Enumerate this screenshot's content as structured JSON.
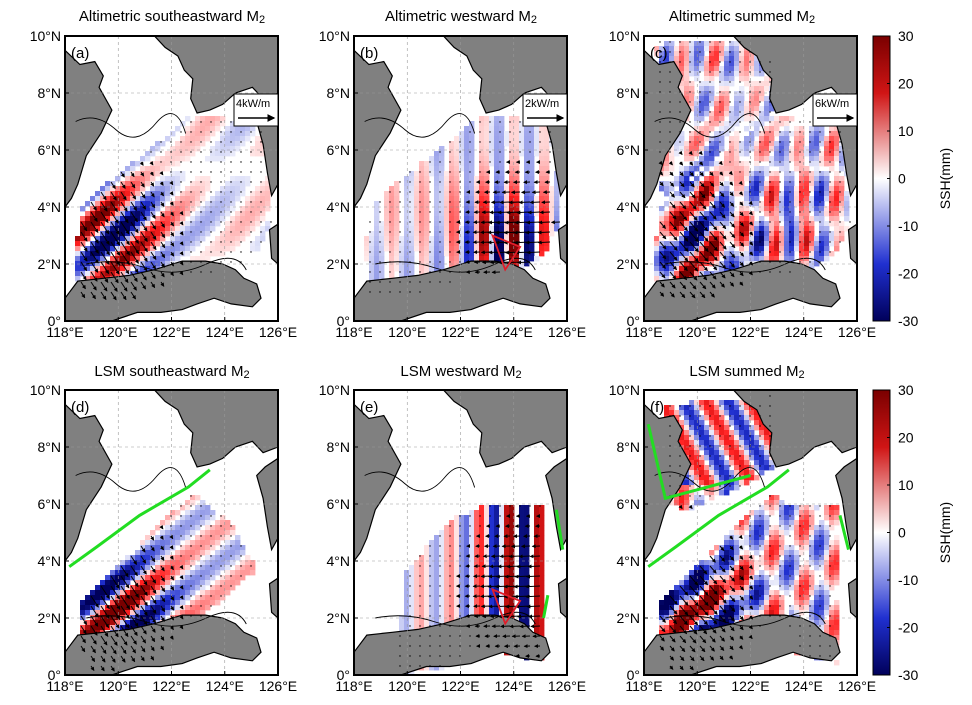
{
  "figure": {
    "panels": [
      {
        "id": "a",
        "letter": "(a)",
        "title_main": "Altimetric southeastward M",
        "title_sub": "2",
        "scale_label": "4kW/m",
        "mode": "se",
        "has_scale": true,
        "has_green": false,
        "has_red": false
      },
      {
        "id": "b",
        "letter": "(b)",
        "title_main": "Altimetric westward M",
        "title_sub": "2",
        "scale_label": "2kW/m",
        "mode": "w",
        "has_scale": true,
        "has_green": false,
        "has_red": true
      },
      {
        "id": "c",
        "letter": "(c)",
        "title_main": "Altimetric summed M",
        "title_sub": "2",
        "scale_label": "6kW/m",
        "mode": "sum",
        "has_scale": true,
        "has_green": false,
        "has_red": false
      },
      {
        "id": "d",
        "letter": "(d)",
        "title_main": "LSM southeastward M",
        "title_sub": "2",
        "scale_label": "",
        "mode": "lse",
        "has_scale": false,
        "has_green": true,
        "has_red": false
      },
      {
        "id": "e",
        "letter": "(e)",
        "title_main": "LSM westward M",
        "title_sub": "2",
        "scale_label": "",
        "mode": "lw",
        "has_scale": false,
        "has_green": true,
        "has_red": true
      },
      {
        "id": "f",
        "letter": "(f)",
        "title_main": "LSM summed M",
        "title_sub": "2",
        "scale_label": "",
        "mode": "lsum",
        "has_scale": false,
        "has_green": true,
        "has_red": false
      }
    ],
    "lat_ticks": [
      "0°",
      "2°N",
      "4°N",
      "6°N",
      "8°N",
      "10°N"
    ],
    "lon_ticks": [
      "118°E",
      "120°E",
      "122°E",
      "124°E",
      "126°E"
    ],
    "colorbar": {
      "label": "SSH(mm)",
      "ticks": [
        "30",
        "20",
        "10",
        "0",
        "-10",
        "-20",
        "-30"
      ],
      "range": [
        -30,
        30
      ],
      "colors": {
        "max": "#7a0000",
        "high": "#e02020",
        "zero": "#ffffff",
        "low": "#2030d0",
        "min": "#00005a"
      }
    },
    "colors": {
      "land": "#808080",
      "coast": "#000000",
      "green_line": "#22dd22",
      "red_triangle": "#e11d2a",
      "arrow": "#000000"
    }
  },
  "chart_data": {
    "type": "heatmap",
    "panels": [
      "Altimetric southeastward M2",
      "Altimetric westward M2",
      "Altimetric summed M2",
      "LSM southeastward M2",
      "LSM westward M2",
      "LSM summed M2"
    ],
    "x_axis": {
      "ticks": [
        "118°E",
        "120°E",
        "122°E",
        "124°E",
        "126°E"
      ],
      "range": [
        118,
        126
      ]
    },
    "y_axis": {
      "ticks": [
        "0°",
        "2°N",
        "4°N",
        "6°N",
        "8°N",
        "10°N"
      ],
      "range": [
        0,
        10
      ]
    },
    "colorbar": {
      "label": "SSH(mm)",
      "range": [
        -30,
        30
      ]
    },
    "energy_flux_scales": [
      "4kW/m",
      "2kW/m",
      "6kW/m"
    ]
  }
}
